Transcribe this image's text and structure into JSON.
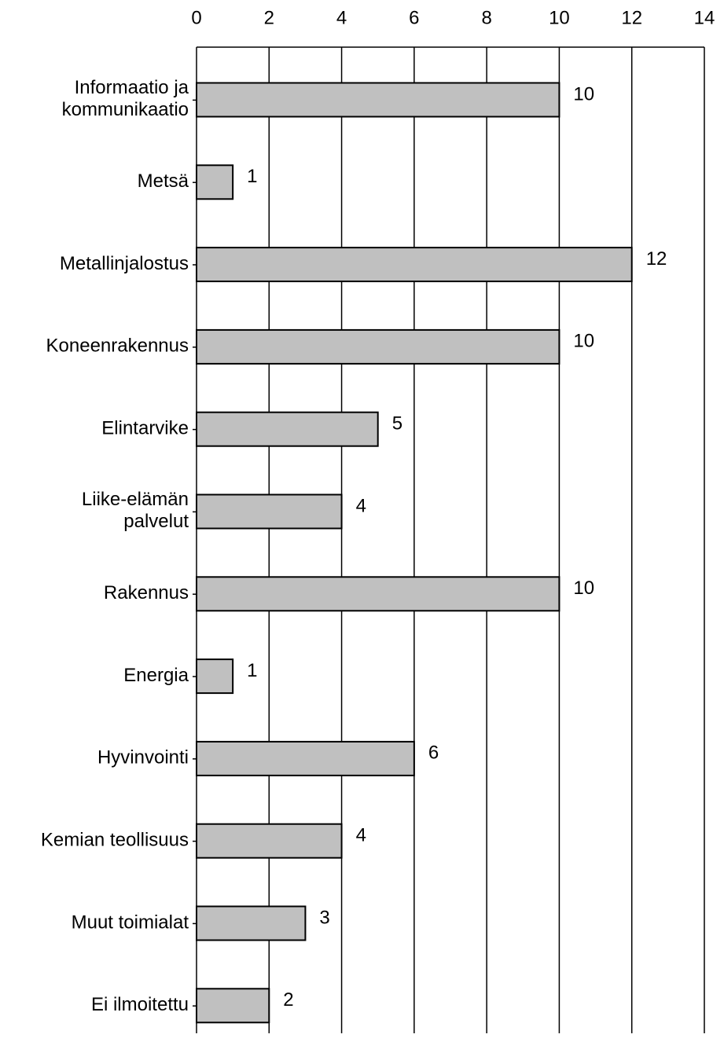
{
  "chart_data": {
    "type": "bar",
    "orientation": "horizontal",
    "categories": [
      "Informaatio ja\nkommunikaatio",
      "Metsä",
      "Metallinjalostus",
      "Koneenrakennus",
      "Elintarvike",
      "Liike-elämän\npalvelut",
      "Rakennus",
      "Energia",
      "Hyvinvointi",
      "Kemian teollisuus",
      "Muut toimialat",
      "Ei ilmoitettu"
    ],
    "values": [
      10,
      1,
      12,
      10,
      5,
      4,
      10,
      1,
      6,
      4,
      3,
      2
    ],
    "color": "#c0c0c0",
    "xlim": [
      0,
      14
    ],
    "xticks": [
      0,
      2,
      4,
      6,
      8,
      10,
      12,
      14
    ],
    "grid": true
  }
}
